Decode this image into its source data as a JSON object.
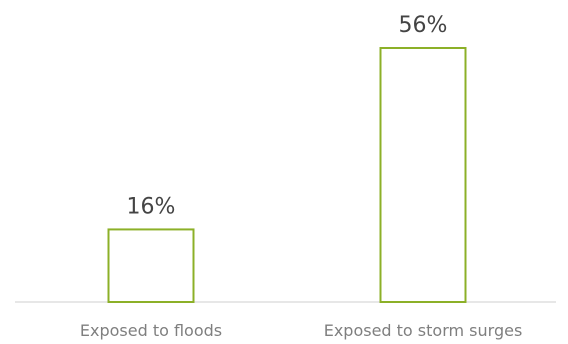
{
  "chart_data": {
    "type": "bar",
    "categories": [
      "Exposed to floods",
      "Exposed to storm surges"
    ],
    "values": [
      16,
      56
    ],
    "data_labels": [
      "16%",
      "56%"
    ],
    "ylim": [
      0,
      60
    ],
    "grid": false,
    "legend": "none",
    "colors": {
      "bar_outline": "#8cb028",
      "bar_fill": "#ffffff",
      "baseline": "#cfcfcf",
      "data_label": "#444444",
      "category_label": "#7f7f7f"
    }
  }
}
